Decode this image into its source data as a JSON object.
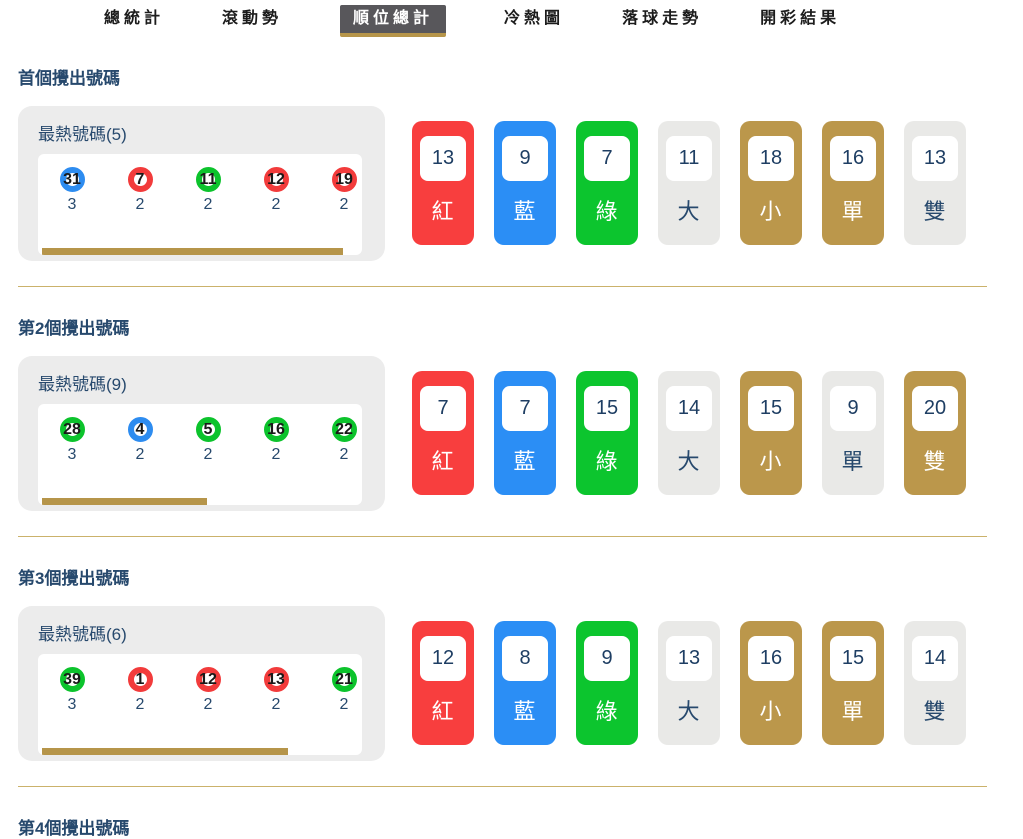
{
  "tabs": [
    {
      "label": "總統計",
      "active": false
    },
    {
      "label": "滾動勢",
      "active": false
    },
    {
      "label": "順位總計",
      "active": true
    },
    {
      "label": "冷熱圖",
      "active": false
    },
    {
      "label": "落球走勢",
      "active": false
    },
    {
      "label": "開彩結果",
      "active": false
    }
  ],
  "colors": {
    "red": "#f83e3e",
    "blue": "#2b8ef5",
    "green": "#0cc52e",
    "gold": "#bb974b",
    "tile_gray": "#e9e9e7",
    "navy_text": "#27496d",
    "divider": "#cbb26b",
    "tab_active_bg": "#58575b",
    "tab_underline": "#b6954a",
    "scrollbar": "#b6954a"
  },
  "sections": [
    {
      "heading": "首個攪出號碼",
      "hot_title": "最熱號碼(5)",
      "balls": [
        {
          "num": "31",
          "color": "blue",
          "count": "3"
        },
        {
          "num": "7",
          "color": "red",
          "count": "2"
        },
        {
          "num": "11",
          "color": "green",
          "count": "2"
        },
        {
          "num": "12",
          "color": "red",
          "count": "2"
        },
        {
          "num": "19",
          "color": "red",
          "count": "2"
        }
      ],
      "scrollbar_pct": 93,
      "tiles": [
        {
          "value": "13",
          "label": "紅",
          "style": "red"
        },
        {
          "value": "9",
          "label": "藍",
          "style": "blue"
        },
        {
          "value": "7",
          "label": "綠",
          "style": "green"
        },
        {
          "value": "11",
          "label": "大",
          "style": "gray"
        },
        {
          "value": "18",
          "label": "小",
          "style": "gold"
        },
        {
          "value": "16",
          "label": "單",
          "style": "gold"
        },
        {
          "value": "13",
          "label": "雙",
          "style": "gray"
        }
      ]
    },
    {
      "heading": "第2個攪出號碼",
      "hot_title": "最熱號碼(9)",
      "balls": [
        {
          "num": "28",
          "color": "green",
          "count": "3"
        },
        {
          "num": "4",
          "color": "blue",
          "count": "2"
        },
        {
          "num": "5",
          "color": "green",
          "count": "2"
        },
        {
          "num": "16",
          "color": "green",
          "count": "2"
        },
        {
          "num": "22",
          "color": "green",
          "count": "2"
        }
      ],
      "scrollbar_pct": 51,
      "tiles": [
        {
          "value": "7",
          "label": "紅",
          "style": "red"
        },
        {
          "value": "7",
          "label": "藍",
          "style": "blue"
        },
        {
          "value": "15",
          "label": "綠",
          "style": "green"
        },
        {
          "value": "14",
          "label": "大",
          "style": "gray"
        },
        {
          "value": "15",
          "label": "小",
          "style": "gold"
        },
        {
          "value": "9",
          "label": "單",
          "style": "gray"
        },
        {
          "value": "20",
          "label": "雙",
          "style": "gold"
        }
      ]
    },
    {
      "heading": "第3個攪出號碼",
      "hot_title": "最熱號碼(6)",
      "balls": [
        {
          "num": "39",
          "color": "green",
          "count": "3"
        },
        {
          "num": "1",
          "color": "red",
          "count": "2"
        },
        {
          "num": "12",
          "color": "red",
          "count": "2"
        },
        {
          "num": "13",
          "color": "red",
          "count": "2"
        },
        {
          "num": "21",
          "color": "green",
          "count": "2"
        }
      ],
      "scrollbar_pct": 76,
      "tiles": [
        {
          "value": "12",
          "label": "紅",
          "style": "red"
        },
        {
          "value": "8",
          "label": "藍",
          "style": "blue"
        },
        {
          "value": "9",
          "label": "綠",
          "style": "green"
        },
        {
          "value": "13",
          "label": "大",
          "style": "gray"
        },
        {
          "value": "16",
          "label": "小",
          "style": "gold"
        },
        {
          "value": "15",
          "label": "單",
          "style": "gold"
        },
        {
          "value": "14",
          "label": "雙",
          "style": "gray"
        }
      ]
    },
    {
      "heading": "第4個攪出號碼"
    }
  ]
}
